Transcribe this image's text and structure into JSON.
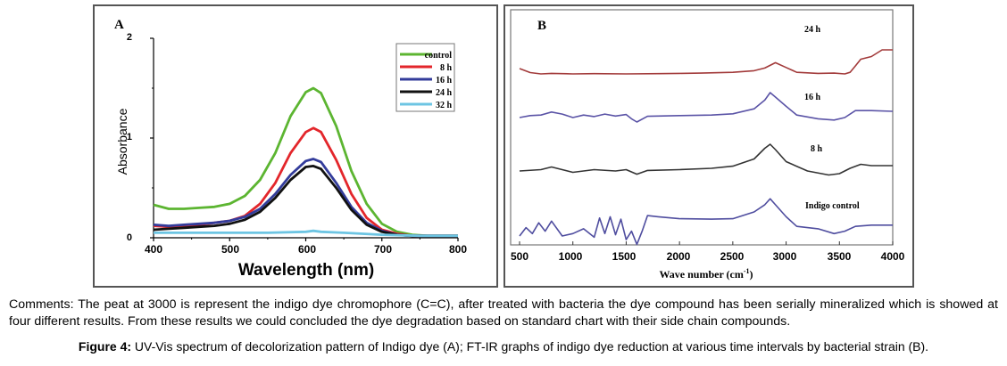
{
  "chart_data": [
    {
      "type": "line",
      "panel_label": "A",
      "xlabel": "Wavelength (nm)",
      "ylabel": "Absorbance",
      "xlim": [
        400,
        800
      ],
      "ylim": [
        0,
        2
      ],
      "x_ticks": [
        "400",
        "500",
        "600",
        "700",
        "800"
      ],
      "y_ticks": [
        "0",
        "1",
        "2"
      ],
      "legend": [
        "control",
        "8 h",
        "16 h",
        "24 h",
        "32 h"
      ],
      "legend_position": "top-right",
      "series": [
        {
          "name": "control",
          "color": "#5cb531",
          "x": [
            400,
            420,
            440,
            460,
            480,
            500,
            520,
            540,
            560,
            580,
            600,
            610,
            620,
            640,
            660,
            680,
            700,
            720,
            740,
            760,
            780,
            800
          ],
          "y": [
            0.33,
            0.29,
            0.29,
            0.3,
            0.31,
            0.34,
            0.42,
            0.58,
            0.85,
            1.22,
            1.46,
            1.5,
            1.45,
            1.12,
            0.67,
            0.34,
            0.14,
            0.06,
            0.03,
            0.02,
            0.02,
            0.02
          ]
        },
        {
          "name": "8 h",
          "color": "#e3262b",
          "x": [
            400,
            420,
            440,
            460,
            480,
            500,
            520,
            540,
            560,
            580,
            600,
            610,
            620,
            640,
            660,
            680,
            700,
            720,
            740,
            760,
            780,
            800
          ],
          "y": [
            0.12,
            0.11,
            0.12,
            0.13,
            0.15,
            0.17,
            0.22,
            0.34,
            0.55,
            0.85,
            1.06,
            1.1,
            1.06,
            0.78,
            0.44,
            0.2,
            0.08,
            0.04,
            0.02,
            0.02,
            0.02,
            0.02
          ]
        },
        {
          "name": "16 h",
          "color": "#333c9b",
          "x": [
            400,
            420,
            440,
            460,
            480,
            500,
            520,
            540,
            560,
            580,
            600,
            610,
            620,
            640,
            660,
            680,
            700,
            720,
            740,
            760,
            780,
            800
          ],
          "y": [
            0.13,
            0.12,
            0.13,
            0.14,
            0.15,
            0.17,
            0.21,
            0.29,
            0.44,
            0.63,
            0.77,
            0.79,
            0.76,
            0.55,
            0.31,
            0.15,
            0.07,
            0.03,
            0.02,
            0.02,
            0.02,
            0.02
          ]
        },
        {
          "name": "24 h",
          "color": "#111111",
          "x": [
            400,
            420,
            440,
            460,
            480,
            500,
            520,
            540,
            560,
            580,
            600,
            610,
            620,
            640,
            660,
            680,
            700,
            720,
            740,
            760,
            780,
            800
          ],
          "y": [
            0.08,
            0.09,
            0.1,
            0.11,
            0.12,
            0.14,
            0.18,
            0.26,
            0.4,
            0.58,
            0.71,
            0.72,
            0.69,
            0.5,
            0.28,
            0.13,
            0.06,
            0.03,
            0.02,
            0.02,
            0.02,
            0.02
          ]
        },
        {
          "name": "32 h",
          "color": "#6dc5e3",
          "x": [
            400,
            450,
            500,
            550,
            600,
            610,
            620,
            650,
            700,
            750,
            800
          ],
          "y": [
            0.05,
            0.05,
            0.05,
            0.05,
            0.06,
            0.07,
            0.06,
            0.05,
            0.03,
            0.02,
            0.02
          ]
        }
      ]
    },
    {
      "type": "line",
      "panel_label": "B",
      "xlabel": "Wave number (cm⁻¹)",
      "ylabel": "",
      "xlim": [
        500,
        4000
      ],
      "x_ticks": [
        "500",
        "1000",
        "1500",
        "2000",
        "2500",
        "3000",
        "3500",
        "4000"
      ],
      "stacked_offsets": true,
      "series": [
        {
          "name": "24 h",
          "color": "#a23a3a",
          "x": [
            500,
            600,
            700,
            800,
            1000,
            1200,
            1500,
            1800,
            2000,
            2200,
            2500,
            2700,
            2800,
            2900,
            3000,
            3100,
            3300,
            3450,
            3550,
            3600,
            3650,
            3700,
            3800,
            3900,
            4000
          ],
          "y": [
            0.2,
            0.05,
            0.0,
            0.02,
            0.0,
            0.01,
            0.0,
            0.01,
            0.02,
            0.03,
            0.06,
            0.12,
            0.22,
            0.42,
            0.24,
            0.06,
            0.02,
            0.03,
            0.0,
            0.06,
            0.3,
            0.55,
            0.65,
            0.9,
            0.9
          ]
        },
        {
          "name": "16 h",
          "color": "#5a53a6",
          "x": [
            500,
            600,
            700,
            800,
            900,
            1000,
            1100,
            1200,
            1300,
            1400,
            1500,
            1550,
            1600,
            1700,
            2000,
            2300,
            2500,
            2700,
            2800,
            2850,
            2900,
            3000,
            3100,
            3300,
            3450,
            3550,
            3650,
            3800,
            4000
          ],
          "y": [
            0.0,
            0.08,
            0.1,
            0.22,
            0.14,
            0.0,
            0.1,
            0.04,
            0.14,
            0.06,
            0.12,
            -0.05,
            -0.18,
            0.05,
            0.08,
            0.1,
            0.15,
            0.35,
            0.7,
            1.0,
            0.82,
            0.45,
            0.1,
            -0.05,
            -0.1,
            0.0,
            0.28,
            0.28,
            0.25
          ]
        },
        {
          "name": "8 h",
          "color": "#333333",
          "x": [
            500,
            700,
            800,
            1000,
            1200,
            1400,
            1500,
            1600,
            1700,
            2000,
            2300,
            2500,
            2700,
            2800,
            2850,
            2900,
            3000,
            3200,
            3400,
            3500,
            3600,
            3700,
            3800,
            4000
          ],
          "y": [
            0.0,
            0.05,
            0.15,
            -0.05,
            0.05,
            0.0,
            0.05,
            -0.12,
            0.02,
            0.05,
            0.1,
            0.18,
            0.45,
            0.85,
            1.0,
            0.8,
            0.35,
            0.0,
            -0.15,
            -0.1,
            0.1,
            0.25,
            0.2,
            0.2
          ]
        },
        {
          "name": "Indigo control",
          "color": "#4f4d9f",
          "x": [
            500,
            560,
            620,
            680,
            740,
            800,
            900,
            1000,
            1100,
            1200,
            1250,
            1300,
            1350,
            1400,
            1450,
            1500,
            1550,
            1600,
            1650,
            1700,
            1800,
            2000,
            2300,
            2500,
            2700,
            2800,
            2850,
            2900,
            3000,
            3100,
            3300,
            3450,
            3550,
            3650,
            3800,
            4000
          ],
          "y": [
            0.0,
            0.35,
            0.1,
            0.55,
            0.2,
            0.62,
            0.0,
            0.1,
            0.3,
            -0.05,
            0.75,
            0.1,
            0.8,
            0.05,
            0.7,
            -0.15,
            0.2,
            -0.35,
            0.2,
            0.85,
            0.8,
            0.72,
            0.7,
            0.72,
            1.0,
            1.3,
            1.55,
            1.3,
            0.8,
            0.4,
            0.3,
            0.1,
            0.2,
            0.4,
            0.45,
            0.45
          ]
        }
      ]
    }
  ],
  "panel_a": {
    "label": "A",
    "xlabel": "Wavelength (nm)",
    "ylabel": "Absorbance"
  },
  "panel_b": {
    "label": "B",
    "xlabel_text": "Wave number (cm",
    "xlabel_sup": "-1",
    "xlabel_close": ")",
    "series_labels": [
      "24 h",
      "16 h",
      "8 h",
      "Indigo control"
    ]
  },
  "comments": "Comments: The peat at 3000 is represent the indigo dye chromophore (C=C), after treated with bacteria the dye compound has been serially mineralized which is showed at four different results. From these results we could concluded the dye degradation based on standard chart with their side chain compounds.",
  "caption": {
    "label": "Figure 4:",
    "text": " UV-Vis spectrum of decolorization pattern of Indigo dye (A); FT-IR graphs of indigo dye reduction at various time intervals by bacterial strain (B)."
  }
}
